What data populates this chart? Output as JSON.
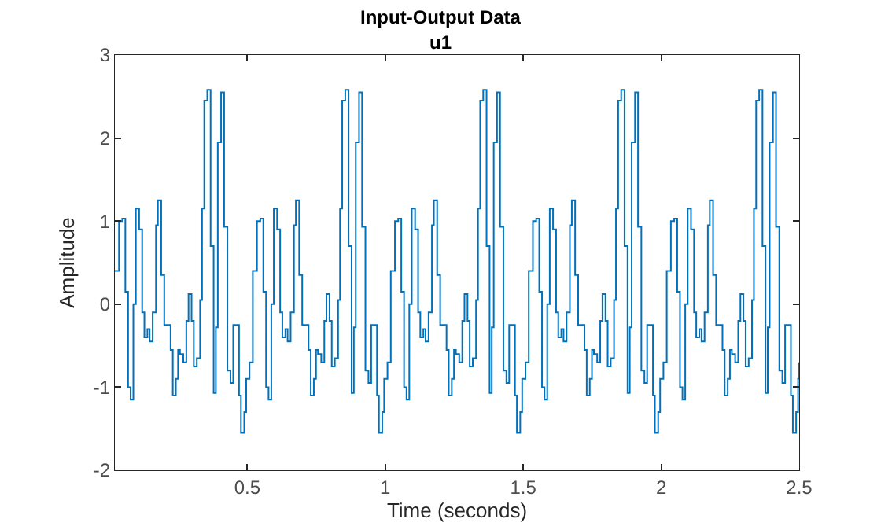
{
  "chart_data": {
    "type": "step",
    "title": "Input-Output Data",
    "subtitle": "u1",
    "xlabel": "Time (seconds)",
    "ylabel": "Amplitude",
    "xlim": [
      0.02,
      2.5
    ],
    "xticks": [
      0.5,
      1,
      1.5,
      2,
      2.5
    ],
    "ylim": [
      -2,
      3
    ],
    "yticks": [
      -2,
      -1,
      0,
      1,
      2,
      3
    ],
    "grid": false,
    "x": [
      0.02,
      0.035,
      0.047,
      0.058,
      0.068,
      0.077,
      0.087,
      0.096,
      0.108,
      0.119,
      0.127,
      0.138,
      0.146,
      0.157,
      0.169,
      0.176,
      0.188,
      0.199,
      0.222,
      0.23,
      0.241,
      0.249,
      0.256,
      0.268,
      0.279,
      0.287,
      0.298,
      0.306,
      0.317,
      0.329,
      0.336,
      0.344,
      0.355,
      0.367,
      0.378,
      0.386,
      0.393,
      0.405,
      0.416,
      0.428,
      0.439,
      0.449,
      0.47,
      0.477,
      0.489,
      0.496,
      0.508,
      0.52,
      0.535,
      0.547,
      0.558,
      0.568,
      0.577,
      0.587,
      0.596,
      0.608,
      0.619,
      0.627,
      0.638,
      0.646,
      0.657,
      0.669,
      0.676,
      0.688,
      0.699,
      0.722,
      0.73,
      0.741,
      0.749,
      0.756,
      0.768,
      0.779,
      0.787,
      0.798,
      0.806,
      0.817,
      0.829,
      0.836,
      0.844,
      0.855,
      0.867,
      0.878,
      0.886,
      0.893,
      0.905,
      0.916,
      0.928,
      0.939,
      0.949,
      0.97,
      0.977,
      0.989,
      0.996,
      1.008,
      1.02,
      1.035,
      1.047,
      1.058,
      1.068,
      1.077,
      1.087,
      1.096,
      1.108,
      1.119,
      1.127,
      1.138,
      1.146,
      1.157,
      1.169,
      1.176,
      1.188,
      1.199,
      1.222,
      1.23,
      1.241,
      1.249,
      1.256,
      1.268,
      1.279,
      1.287,
      1.298,
      1.306,
      1.317,
      1.329,
      1.336,
      1.344,
      1.355,
      1.367,
      1.378,
      1.386,
      1.393,
      1.405,
      1.416,
      1.428,
      1.439,
      1.449,
      1.47,
      1.477,
      1.489,
      1.496,
      1.508,
      1.52,
      1.535,
      1.547,
      1.558,
      1.568,
      1.577,
      1.587,
      1.596,
      1.608,
      1.619,
      1.627,
      1.638,
      1.646,
      1.657,
      1.669,
      1.676,
      1.688,
      1.699,
      1.722,
      1.73,
      1.741,
      1.749,
      1.756,
      1.768,
      1.779,
      1.787,
      1.798,
      1.806,
      1.817,
      1.829,
      1.836,
      1.844,
      1.855,
      1.867,
      1.878,
      1.886,
      1.893,
      1.905,
      1.916,
      1.928,
      1.939,
      1.949,
      1.97,
      1.977,
      1.989,
      1.996,
      2.008,
      2.02,
      2.035,
      2.047,
      2.058,
      2.068,
      2.077,
      2.087,
      2.096,
      2.108,
      2.119,
      2.127,
      2.138,
      2.146,
      2.157,
      2.169,
      2.176,
      2.188,
      2.199,
      2.222,
      2.23,
      2.241,
      2.249,
      2.256,
      2.268,
      2.279,
      2.287,
      2.298,
      2.306,
      2.317,
      2.329,
      2.336,
      2.344,
      2.355,
      2.367,
      2.378,
      2.386,
      2.393,
      2.405,
      2.416,
      2.428,
      2.439,
      2.449,
      2.47,
      2.477,
      2.489,
      2.496,
      2.5
    ],
    "series": [
      {
        "color": "#0072bd",
        "values": [
          0.4,
          1.0,
          1.03,
          0.15,
          -1.0,
          -1.15,
          0.0,
          1.15,
          0.9,
          -0.1,
          -0.4,
          -0.3,
          -0.45,
          -0.1,
          0.95,
          1.25,
          0.35,
          -0.25,
          -0.55,
          -1.1,
          -0.9,
          -0.55,
          -0.6,
          -0.7,
          -0.2,
          0.12,
          -0.2,
          -0.75,
          -0.65,
          0.05,
          1.15,
          2.45,
          2.58,
          0.7,
          -1.07,
          -0.28,
          1.95,
          2.55,
          0.93,
          -0.8,
          -0.95,
          -0.25,
          -1.1,
          -1.55,
          -1.3,
          -0.9,
          -0.7,
          0.4,
          1.0,
          1.03,
          0.15,
          -1.0,
          -1.15,
          0.0,
          1.15,
          0.9,
          -0.1,
          -0.4,
          -0.3,
          -0.45,
          -0.1,
          0.95,
          1.25,
          0.35,
          -0.25,
          -0.55,
          -1.1,
          -0.9,
          -0.55,
          -0.6,
          -0.7,
          -0.2,
          0.12,
          -0.2,
          -0.75,
          -0.65,
          0.05,
          1.15,
          2.45,
          2.58,
          0.7,
          -1.07,
          -0.28,
          1.95,
          2.55,
          0.93,
          -0.8,
          -0.95,
          -0.25,
          -1.1,
          -1.55,
          -1.3,
          -0.9,
          -0.7,
          0.4,
          1.0,
          1.03,
          0.15,
          -1.0,
          -1.15,
          0.0,
          1.15,
          0.9,
          -0.1,
          -0.4,
          -0.3,
          -0.45,
          -0.1,
          0.95,
          1.25,
          0.35,
          -0.25,
          -0.55,
          -1.1,
          -0.9,
          -0.55,
          -0.6,
          -0.7,
          -0.2,
          0.12,
          -0.2,
          -0.75,
          -0.65,
          0.05,
          1.15,
          2.45,
          2.58,
          0.7,
          -1.07,
          -0.28,
          1.95,
          2.55,
          0.93,
          -0.8,
          -0.95,
          -0.25,
          -1.1,
          -1.55,
          -1.3,
          -0.9,
          -0.7,
          0.4,
          1.0,
          1.03,
          0.15,
          -1.0,
          -1.15,
          0.0,
          1.15,
          0.9,
          -0.1,
          -0.4,
          -0.3,
          -0.45,
          -0.1,
          0.95,
          1.25,
          0.35,
          -0.25,
          -0.55,
          -1.1,
          -0.9,
          -0.55,
          -0.6,
          -0.7,
          -0.2,
          0.12,
          -0.2,
          -0.75,
          -0.65,
          0.05,
          1.15,
          2.45,
          2.58,
          0.7,
          -1.07,
          -0.28,
          1.95,
          2.55,
          0.93,
          -0.8,
          -0.95,
          -0.25,
          -1.1,
          -1.55,
          -1.3,
          -0.9,
          -0.7,
          0.4,
          1.0,
          1.03,
          0.15,
          -1.0,
          -1.15,
          0.0,
          1.15,
          0.9,
          -0.1,
          -0.4,
          -0.3,
          -0.45,
          -0.1,
          0.95,
          1.25,
          0.35,
          -0.25,
          -0.55,
          -1.1,
          -0.9,
          -0.55,
          -0.6,
          -0.7,
          -0.2,
          0.12,
          -0.2,
          -0.75,
          -0.65,
          0.05,
          1.15,
          2.45,
          2.58,
          0.7,
          -1.07,
          -0.28,
          1.95,
          2.55,
          0.93,
          -0.8,
          -0.95,
          -0.25,
          -1.1,
          -1.55,
          -1.3,
          -0.9,
          -0.7
        ]
      }
    ]
  }
}
